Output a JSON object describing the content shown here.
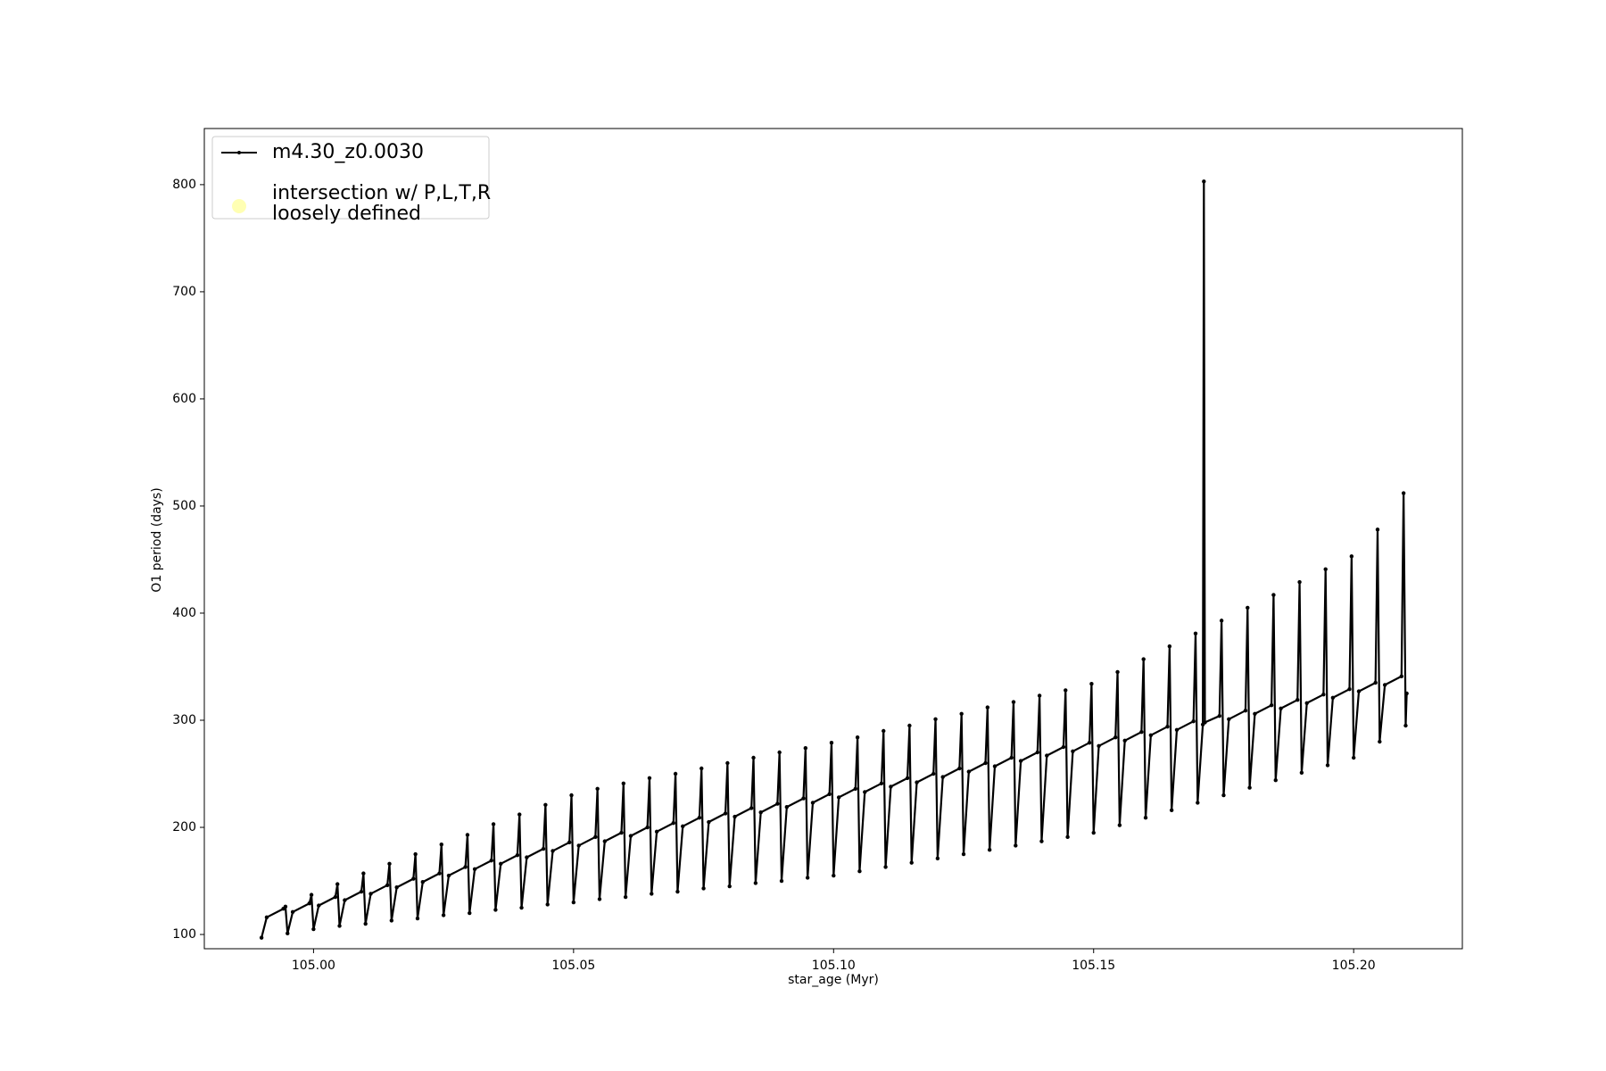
{
  "chart_data": {
    "type": "line",
    "xlabel": "star_age (Myr)",
    "ylabel": "O1 period (days)",
    "xlim": [
      104.979,
      105.2209
    ],
    "ylim": [
      86.7,
      852.4
    ],
    "xticks": [
      {
        "value": 105.0,
        "label": "105.00"
      },
      {
        "value": 105.05,
        "label": "105.05"
      },
      {
        "value": 105.1,
        "label": "105.10"
      },
      {
        "value": 105.15,
        "label": "105.15"
      },
      {
        "value": 105.2,
        "label": "105.20"
      }
    ],
    "yticks": [
      100,
      200,
      300,
      400,
      500,
      600,
      700,
      800
    ],
    "legend": "upper left",
    "series": [
      {
        "name": "m4.30_z0.0030",
        "color": "#000000",
        "marker": "dot",
        "x": [
          104.99,
          104.991,
          104.9942,
          104.9946,
          104.995,
          104.996,
          104.9992,
          104.9996,
          105.0,
          105.001,
          105.0042,
          105.0046,
          105.005,
          105.006,
          105.0092,
          105.0096,
          105.01,
          105.011,
          105.0142,
          105.0146,
          105.015,
          105.016,
          105.0192,
          105.0196,
          105.02,
          105.021,
          105.0242,
          105.0246,
          105.025,
          105.026,
          105.0292,
          105.0296,
          105.03,
          105.031,
          105.0342,
          105.0346,
          105.035,
          105.036,
          105.0392,
          105.0396,
          105.04,
          105.041,
          105.0442,
          105.0446,
          105.045,
          105.046,
          105.0492,
          105.0496,
          105.05,
          105.051,
          105.0542,
          105.0546,
          105.055,
          105.056,
          105.0592,
          105.0596,
          105.06,
          105.061,
          105.0642,
          105.0646,
          105.065,
          105.066,
          105.0692,
          105.0696,
          105.07,
          105.071,
          105.0742,
          105.0746,
          105.075,
          105.076,
          105.0792,
          105.0796,
          105.08,
          105.081,
          105.0842,
          105.0846,
          105.085,
          105.086,
          105.0892,
          105.0896,
          105.09,
          105.091,
          105.0942,
          105.0946,
          105.095,
          105.096,
          105.0992,
          105.0996,
          105.1,
          105.101,
          105.1042,
          105.1046,
          105.105,
          105.106,
          105.1092,
          105.1096,
          105.11,
          105.111,
          105.1142,
          105.1146,
          105.115,
          105.116,
          105.1192,
          105.1196,
          105.12,
          105.121,
          105.1242,
          105.1246,
          105.125,
          105.126,
          105.1292,
          105.1296,
          105.13,
          105.131,
          105.1342,
          105.1346,
          105.135,
          105.136,
          105.1392,
          105.1396,
          105.14,
          105.141,
          105.1442,
          105.1446,
          105.145,
          105.146,
          105.1492,
          105.1496,
          105.15,
          105.151,
          105.1542,
          105.1546,
          105.155,
          105.156,
          105.1592,
          105.1596,
          105.16,
          105.161,
          105.1642,
          105.1646,
          105.165,
          105.166,
          105.1692,
          105.1696,
          105.17,
          105.171,
          105.1712,
          105.1714,
          105.1742,
          105.1746,
          105.175,
          105.176,
          105.1792,
          105.1796,
          105.18,
          105.181,
          105.1842,
          105.1846,
          105.185,
          105.186,
          105.1892,
          105.1896,
          105.19,
          105.191,
          105.1942,
          105.1946,
          105.195,
          105.196,
          105.1992,
          105.1996,
          105.2,
          105.201,
          105.2042,
          105.2046,
          105.205,
          105.206,
          105.2092,
          105.2096,
          105.21,
          105.2102
        ],
        "values": [
          97,
          116,
          124,
          126,
          101,
          121,
          129,
          137,
          105,
          127,
          135,
          147,
          108,
          132,
          140,
          157,
          110,
          138,
          146,
          166,
          113,
          144,
          152,
          175,
          115,
          149,
          157,
          184,
          118,
          155,
          163,
          193,
          120,
          161,
          169,
          203,
          123,
          166,
          174,
          212,
          125,
          172,
          180,
          221,
          128,
          178,
          186,
          230,
          130,
          183,
          191,
          236,
          133,
          187,
          195,
          241,
          135,
          192,
          200,
          246,
          138,
          196,
          204,
          250,
          140,
          201,
          209,
          255,
          143,
          205,
          213,
          260,
          145,
          210,
          218,
          265,
          148,
          214,
          222,
          270,
          150,
          219,
          227,
          274,
          153,
          223,
          231,
          279,
          155,
          228,
          236,
          284,
          159,
          233,
          241,
          290,
          163,
          238,
          246,
          295,
          167,
          242,
          250,
          301,
          171,
          247,
          255,
          306,
          175,
          252,
          260,
          312,
          179,
          257,
          265,
          317,
          183,
          262,
          270,
          323,
          187,
          267,
          275,
          328,
          191,
          271,
          279,
          334,
          195,
          276,
          284,
          345,
          202,
          281,
          289,
          357,
          209,
          286,
          294,
          369,
          216,
          291,
          299,
          381,
          223,
          296,
          803,
          298,
          304,
          393,
          230,
          301,
          309,
          405,
          237,
          306,
          314,
          417,
          244,
          311,
          319,
          429,
          251,
          316,
          324,
          441,
          258,
          321,
          329,
          453,
          265,
          327,
          335,
          478,
          280,
          333,
          341,
          512,
          295,
          325
        ]
      },
      {
        "name": "intersection w/ P,L,T,R\nloosely defined",
        "color": "#ffffb3",
        "marker": "circle",
        "x": [],
        "values": []
      }
    ]
  }
}
